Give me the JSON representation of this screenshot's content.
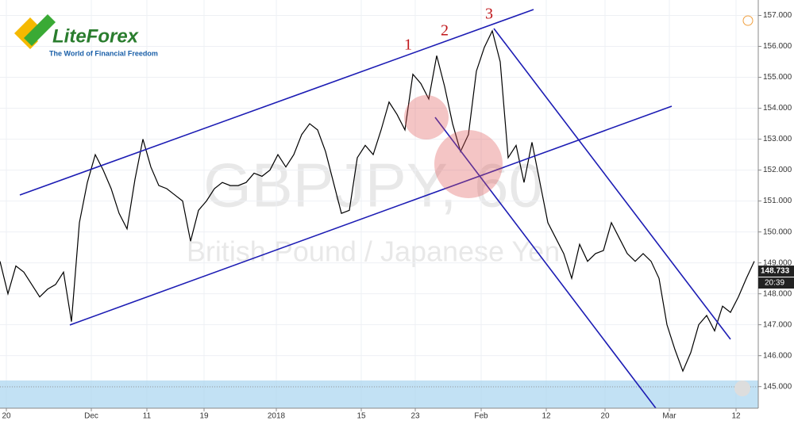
{
  "logo": {
    "name": "LiteForex",
    "tagline": "The World of Financial Freedom"
  },
  "chart_data": {
    "type": "line",
    "watermark": {
      "symbol": "GBPJPY, 60",
      "description": "British Pound / Japanese Yen"
    },
    "annotations": [
      "1",
      "2",
      "3"
    ],
    "series": [
      {
        "name": "GBPJPY",
        "color": "#000000",
        "values": [
          149.05,
          148.0,
          148.9,
          148.7,
          148.3,
          147.9,
          148.15,
          148.3,
          148.7,
          147.1,
          150.3,
          151.6,
          152.5,
          152.0,
          151.4,
          150.6,
          150.1,
          151.7,
          153.0,
          152.1,
          151.5,
          151.4,
          151.2,
          151.0,
          149.7,
          150.7,
          151.0,
          151.4,
          151.6,
          151.5,
          151.5,
          151.6,
          151.9,
          151.8,
          152.0,
          152.5,
          152.1,
          152.5,
          153.15,
          153.5,
          153.3,
          152.6,
          151.6,
          150.6,
          150.7,
          152.4,
          152.8,
          152.5,
          153.3,
          154.2,
          153.8,
          153.3,
          155.1,
          154.8,
          154.3,
          155.7,
          154.7,
          153.5,
          152.6,
          153.15,
          155.2,
          155.97,
          156.5,
          155.5,
          152.4,
          152.8,
          151.6,
          152.9,
          151.6,
          150.3,
          149.8,
          149.3,
          148.5,
          149.6,
          149.05,
          149.3,
          149.4,
          150.3,
          149.8,
          149.3,
          149.05,
          149.3,
          149.05,
          148.5,
          147.0,
          146.2,
          145.5,
          146.1,
          147.0,
          147.3,
          146.8,
          147.6,
          147.4,
          147.9,
          148.5,
          149.05
        ]
      }
    ],
    "last_price": 148.733,
    "last_time": "20:39",
    "xlim": [
      0,
      95.5
    ],
    "xticks": [
      {
        "value": 0.8,
        "label": "20"
      },
      {
        "value": 11.5,
        "label": "Dec"
      },
      {
        "value": 18.5,
        "label": "11"
      },
      {
        "value": 25.7,
        "label": "19"
      },
      {
        "value": 34.8,
        "label": "2018"
      },
      {
        "value": 45.5,
        "label": "15"
      },
      {
        "value": 52.3,
        "label": "23"
      },
      {
        "value": 60.6,
        "label": "Feb"
      },
      {
        "value": 68.8,
        "label": "12"
      },
      {
        "value": 76.2,
        "label": "20"
      },
      {
        "value": 84.3,
        "label": "Mar"
      },
      {
        "value": 92.7,
        "label": "12"
      }
    ],
    "ylim": [
      144.3,
      157.5
    ],
    "yticks": [
      {
        "value": 145,
        "label": "145.000"
      },
      {
        "value": 146,
        "label": "146.000"
      },
      {
        "value": 147,
        "label": "147.000"
      },
      {
        "value": 148,
        "label": "148.000"
      },
      {
        "value": 149,
        "label": "149.000"
      },
      {
        "value": 150,
        "label": "150.000"
      },
      {
        "value": 151,
        "label": "151.000"
      },
      {
        "value": 152,
        "label": "152.000"
      },
      {
        "value": 153,
        "label": "153.000"
      },
      {
        "value": 154,
        "label": "154.000"
      },
      {
        "value": 155,
        "label": "155.000"
      },
      {
        "value": 156,
        "label": "156.000"
      },
      {
        "value": 157,
        "label": "157.000"
      }
    ]
  }
}
